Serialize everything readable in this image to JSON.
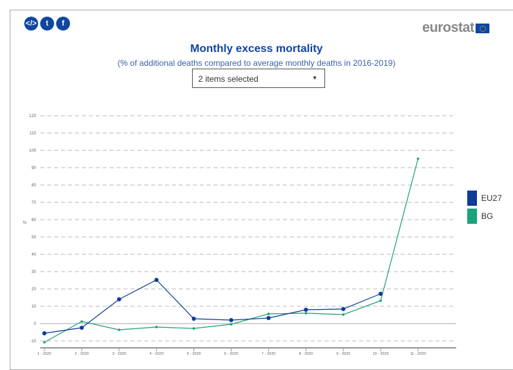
{
  "header": {
    "share_icons": [
      "embed-icon",
      "twitter-icon",
      "facebook-icon"
    ],
    "logo_text": "eurostat"
  },
  "selector": {
    "value": "2 items selected"
  },
  "chart_data": {
    "type": "line",
    "title": "Monthly excess mortality",
    "subtitle": "(% of additional deaths compared to average monthly deaths in 2016-2019)",
    "ylabel": "%",
    "xlabel": "",
    "categories": [
      "1 - 2020",
      "2 - 2020",
      "3 - 2020",
      "4 - 2020",
      "5 - 2020",
      "6 - 2020",
      "7 - 2020",
      "8 - 2020",
      "9 - 2020",
      "10 - 2020",
      "11 - 2020"
    ],
    "yticks": [
      -10,
      0,
      10,
      20,
      30,
      40,
      50,
      60,
      70,
      80,
      90,
      100,
      110,
      120
    ],
    "ylim": [
      -10,
      120
    ],
    "grid": true,
    "legend_position": "right",
    "series": [
      {
        "name": "EU27",
        "color": "#0e3c96",
        "values": [
          -5.6,
          -2.4,
          14,
          25.2,
          2.8,
          2,
          3.2,
          8,
          8.4,
          17.2,
          null
        ]
      },
      {
        "name": "BG",
        "color": "#1aa27a",
        "values": [
          -10.8,
          1.2,
          -3.6,
          -2,
          -2.8,
          -0.4,
          5.6,
          6,
          5.2,
          13.2,
          95.2
        ]
      }
    ]
  }
}
